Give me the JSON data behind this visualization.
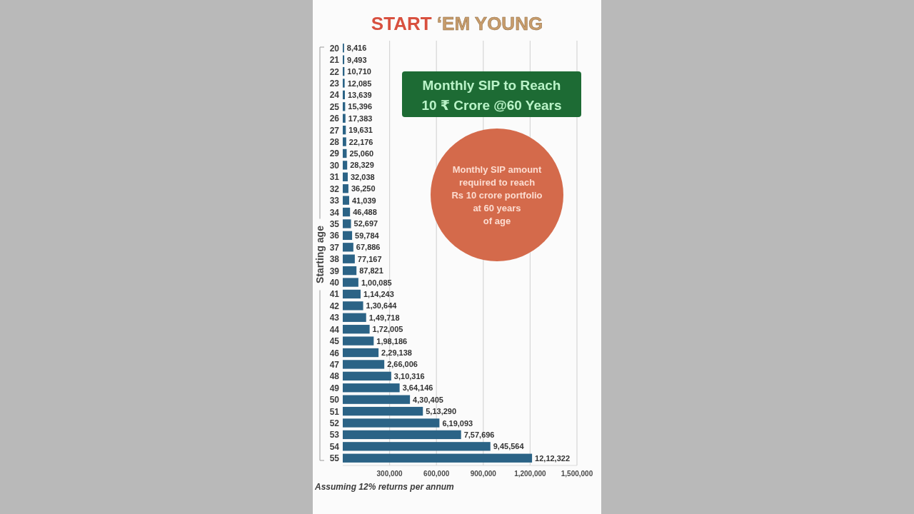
{
  "chart_data": {
    "type": "bar",
    "orientation": "horizontal",
    "title": "START ‘EM YOUNG",
    "subtitle": "Monthly SIP to Reach\n10 ₹ Crore @60 Years",
    "ylabel": "Starting age",
    "categories": [
      "20",
      "21",
      "22",
      "23",
      "24",
      "25",
      "26",
      "27",
      "28",
      "29",
      "30",
      "31",
      "32",
      "33",
      "34",
      "35",
      "36",
      "37",
      "38",
      "39",
      "40",
      "41",
      "42",
      "43",
      "44",
      "45",
      "46",
      "47",
      "48",
      "49",
      "50",
      "51",
      "52",
      "53",
      "54",
      "55"
    ],
    "values": [
      8416,
      9493,
      10710,
      12085,
      13639,
      15396,
      17383,
      19631,
      22176,
      25060,
      28329,
      32038,
      36250,
      41039,
      46488,
      52697,
      59784,
      67886,
      77167,
      87821,
      100085,
      114243,
      130644,
      149718,
      172005,
      198186,
      229138,
      266006,
      310316,
      364146,
      430405,
      513290,
      619093,
      757696,
      945564,
      1212322
    ],
    "value_labels": [
      "8,416",
      "9,493",
      "10,710",
      "12,085",
      "13,639",
      "15,396",
      "17,383",
      "19,631",
      "22,176",
      "25,060",
      "28,329",
      "32,038",
      "36,250",
      "41,039",
      "46,488",
      "52,697",
      "59,784",
      "67,886",
      "77,167",
      "87,821",
      "1,00,085",
      "1,14,243",
      "1,30,644",
      "1,49,718",
      "1,72,005",
      "1,98,186",
      "2,29,138",
      "2,66,006",
      "3,10,316",
      "3,64,146",
      "4,30,405",
      "5,13,290",
      "6,19,093",
      "7,57,696",
      "9,45,564",
      "12,12,322"
    ],
    "color": "#2b6386",
    "xlim": [
      0,
      1500000
    ],
    "xticks": [
      {
        "value": 300000,
        "label": "300,000"
      },
      {
        "value": 600000,
        "label": "600,000"
      },
      {
        "value": 900000,
        "label": "900,000"
      },
      {
        "value": 1200000,
        "label": "1,200,000"
      },
      {
        "value": 1500000,
        "label": "1,500,000"
      }
    ],
    "grid": "x",
    "annotations": [
      "Monthly SIP amount\nrequired to reach\nRs 10 crore portfolio\nat 60 years\nof age",
      "Assuming 12% returns per annum"
    ]
  }
}
